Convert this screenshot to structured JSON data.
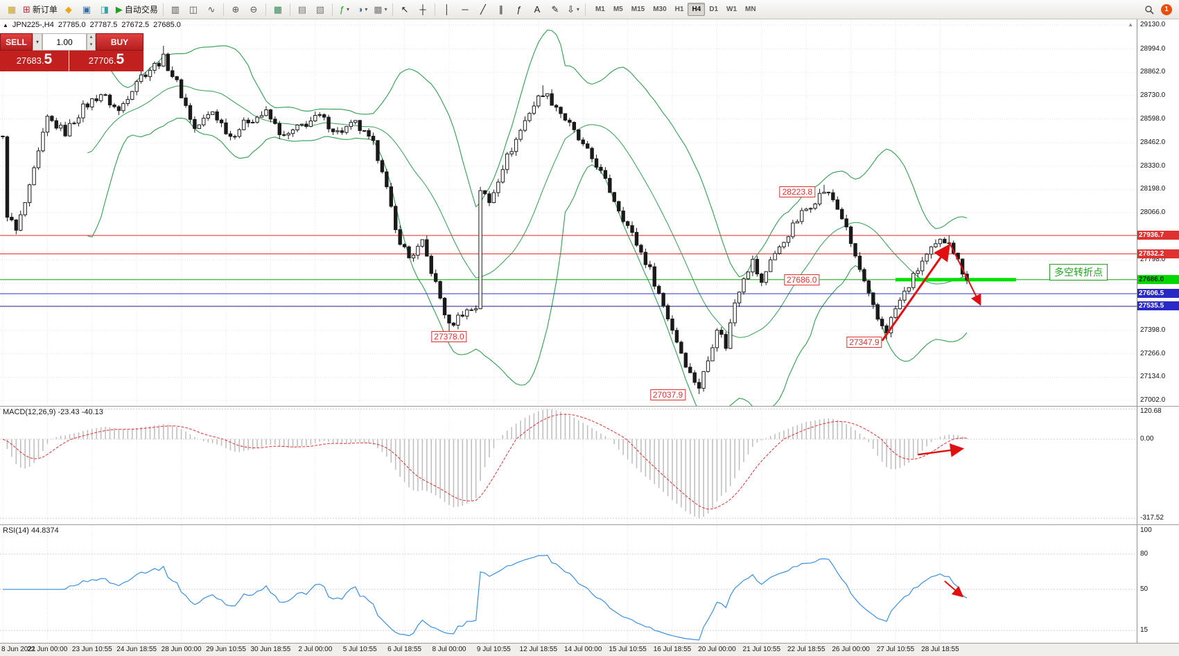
{
  "toolbar": {
    "items": [
      {
        "name": "chart-window-icon",
        "glyph": "▦",
        "color": "#c8a028"
      },
      {
        "name": "new-order-button",
        "glyph": "⊞",
        "color": "#b03030",
        "label": "新订单"
      },
      {
        "name": "alerts-icon",
        "glyph": "◆",
        "color": "#e8a81c"
      },
      {
        "name": "market-watch-icon",
        "glyph": "▣",
        "color": "#3a6ea5"
      },
      {
        "name": "strategy-tester-icon",
        "glyph": "◨",
        "color": "#3aa0a5"
      },
      {
        "name": "autotrading-button",
        "glyph": "▶",
        "color": "#1fa11f",
        "label": "自动交易"
      },
      {
        "sep": true
      },
      {
        "name": "chart-bars-button",
        "glyph": "▥",
        "color": "#555555"
      },
      {
        "name": "chart-candles-button",
        "glyph": "◫",
        "color": "#555555"
      },
      {
        "name": "chart-line-button",
        "glyph": "∿",
        "color": "#555555"
      },
      {
        "sep": true
      },
      {
        "name": "zoom-in-button",
        "glyph": "⊕",
        "color": "#555555"
      },
      {
        "name": "zoom-out-button",
        "glyph": "⊖",
        "color": "#555555"
      },
      {
        "sep": true
      },
      {
        "name": "tile-windows-button",
        "glyph": "▦",
        "color": "#2e8b57"
      },
      {
        "sep": true
      },
      {
        "name": "auto-arrange-button",
        "glyph": "▤",
        "color": "#777777"
      },
      {
        "name": "cascade-windows-button",
        "glyph": "▧",
        "color": "#777777"
      },
      {
        "sep": true
      },
      {
        "name": "indicators-button",
        "glyph": "ƒ",
        "color": "#1fa11f",
        "caret": true
      },
      {
        "name": "periods-button",
        "glyph": "◑",
        "color": "#3a6ea5",
        "caret": true
      },
      {
        "name": "templates-button",
        "glyph": "▩",
        "color": "#777777",
        "caret": true
      },
      {
        "sep": true
      },
      {
        "name": "cursor-button",
        "glyph": "↖",
        "color": "#222222"
      },
      {
        "name": "crosshair-button",
        "glyph": "┼",
        "color": "#222222"
      },
      {
        "sep": true
      },
      {
        "name": "vertical-line-button",
        "glyph": "│",
        "color": "#222222"
      },
      {
        "name": "horizontal-line-button",
        "glyph": "─",
        "color": "#222222"
      },
      {
        "name": "trendline-button",
        "glyph": "╱",
        "color": "#222222"
      },
      {
        "name": "channel-button",
        "glyph": "∥",
        "color": "#222222"
      },
      {
        "name": "fibonacci-button",
        "glyph": "ƒ",
        "color": "#222222"
      },
      {
        "name": "text-button",
        "glyph": "A",
        "color": "#222222"
      },
      {
        "name": "label-button",
        "glyph": "✎",
        "color": "#222222"
      },
      {
        "name": "arrows-tools-button",
        "glyph": "⇩",
        "color": "#222222",
        "caret": true
      },
      {
        "sep": true
      }
    ],
    "timeframes": [
      "M1",
      "M5",
      "M15",
      "M30",
      "H1",
      "H4",
      "D1",
      "W1",
      "MN"
    ],
    "active_timeframe": "H4",
    "notification_count": "1"
  },
  "chart": {
    "info": {
      "direction": "▲",
      "symbol_tf": "JPN225-,H4",
      "open": "27785.0",
      "high": "27787.5",
      "low": "27672.5",
      "close": "27685.0"
    },
    "one_click": {
      "sell_label": "SELL",
      "buy_label": "BUY",
      "volume": "1.00",
      "sell_price_main": "27683.",
      "sell_price_big": "5",
      "buy_price_main": "27706.",
      "buy_price_big": "5"
    },
    "scale_labels": [
      {
        "text": "29130.0",
        "value": 29130.0
      },
      {
        "text": "28994.0",
        "value": 28994.0
      },
      {
        "text": "28862.0",
        "value": 28862.0
      },
      {
        "text": "28730.0",
        "value": 28730.0
      },
      {
        "text": "28598.0",
        "value": 28598.0
      },
      {
        "text": "28462.0",
        "value": 28462.0
      },
      {
        "text": "28330.0",
        "value": 28330.0
      },
      {
        "text": "28198.0",
        "value": 28198.0
      },
      {
        "text": "28066.0",
        "value": 28066.0
      },
      {
        "text": "27798.0",
        "value": 27798.0
      },
      {
        "text": "27398.0",
        "value": 27398.0
      },
      {
        "text": "27266.0",
        "value": 27266.0
      },
      {
        "text": "27134.0",
        "value": 27134.0
      },
      {
        "text": "27002.0",
        "value": 27002.0
      }
    ],
    "grid_prices": [
      29130,
      28994,
      28862,
      28730,
      28598,
      28462,
      28330,
      28198,
      28066,
      27934,
      27798,
      27666,
      27530,
      27398,
      27266,
      27134,
      27002
    ],
    "price_badges": [
      {
        "text": "27936.7",
        "value": 27936.7,
        "bg": "#e03131",
        "fg": "#ffffff"
      },
      {
        "text": "27832.2",
        "value": 27832.2,
        "bg": "#e03131",
        "fg": "#ffffff"
      },
      {
        "text": "27686.0",
        "value": 27686.0,
        "bg": "#00d800",
        "fg": "#002a00"
      },
      {
        "text": "27606.5",
        "value": 27606.5,
        "bg": "#2929c8",
        "fg": "#ffffff"
      },
      {
        "text": "27535.5",
        "value": 27535.5,
        "bg": "#2929c8",
        "fg": "#ffffff"
      }
    ],
    "hlines": [
      {
        "price": 27936.7,
        "color": "#e03131",
        "width": 1
      },
      {
        "price": 27832.2,
        "color": "#e03131",
        "width": 1
      },
      {
        "price": 27686.0,
        "color": "#00aa00",
        "width": 1
      },
      {
        "price": 27606.5,
        "color": "#3030d0",
        "width": 1
      },
      {
        "price": 27535.5,
        "color": "#202090",
        "width": 1
      }
    ],
    "green_segment": {
      "price": 27686.0,
      "from_bar": 200,
      "to_bar": 227,
      "color": "#00e000",
      "width": 5
    },
    "annotations": [
      {
        "text": "28223.8",
        "bar": 178,
        "price": 28184,
        "style": "red"
      },
      {
        "text": "27686.0",
        "bar": 179,
        "price": 27686,
        "style": "red"
      },
      {
        "text": "27378.0",
        "bar": 100,
        "price": 27363,
        "style": "red"
      },
      {
        "text": "27347.9",
        "bar": 193,
        "price": 27332,
        "style": "red"
      },
      {
        "text": "27037.9",
        "bar": 149,
        "price": 27034,
        "style": "red"
      },
      {
        "text": "多空转折点",
        "bar": 241,
        "price": 27730,
        "style": "green"
      }
    ],
    "arrows": [
      {
        "name": "bull-trend-arrow",
        "panel": "main",
        "from_bar": 197,
        "from_val": 27340,
        "to_bar": 212,
        "to_val": 27880,
        "width": 3
      },
      {
        "name": "bear-trend-arrow",
        "panel": "main",
        "from_bar": 212,
        "from_val": 27900,
        "to_bar": 219,
        "to_val": 27545,
        "width": 2
      },
      {
        "name": "macd-trend-arrow",
        "panel": "macd",
        "from_bar": 205,
        "from_val": -62,
        "to_bar": 215,
        "to_val": -38,
        "width": 2.5
      },
      {
        "name": "rsi-trend-arrow",
        "panel": "rsi",
        "from_bar": 211,
        "from_val": 57,
        "to_bar": 215,
        "to_val": 44,
        "width": 2
      }
    ],
    "arrow_color": "#e01010"
  },
  "macd": {
    "header": "MACD(12,26,9) -23.43 -40.13",
    "scale_labels": [
      "120.68",
      "0.00",
      "-317.52"
    ],
    "scale_values": [
      120.68,
      0,
      -317.52
    ]
  },
  "rsi": {
    "header": "RSI(14) 44.8374",
    "scale_labels": [
      "100",
      "80",
      "50",
      "15"
    ],
    "scale_values": [
      100,
      80,
      50,
      15
    ],
    "grid_values": [
      80,
      50,
      15
    ]
  },
  "time_axis": {
    "labels": [
      "8 Jun 2021",
      "22 Jun 00:00",
      "23 Jun 10:55",
      "24 Jun 18:55",
      "28 Jun 00:00",
      "29 Jun 10:55",
      "30 Jun 18:55",
      "2 Jul 00:00",
      "5 Jul 10:55",
      "6 Jul 18:55",
      "8 Jul 00:00",
      "9 Jul 10:55",
      "12 Jul 18:55",
      "14 Jul 00:00",
      "15 Jul 10:55",
      "16 Jul 18:55",
      "20 Jul 00:00",
      "21 Jul 10:55",
      "22 Jul 18:55",
      "26 Jul 00:00",
      "27 Jul 10:55",
      "28 Jul 18:55"
    ]
  },
  "chart_data": {
    "type": "candlestick",
    "symbol": "JPN225-",
    "timeframe": "H4",
    "bars": 217,
    "ylim": [
      27002,
      29130
    ],
    "ohlc_display": {
      "open": 27785.0,
      "high": 27787.5,
      "low": 27672.5,
      "close": 27685.0
    },
    "bid": 27683.5,
    "ask": 27706.5,
    "last_close": 27685.0,
    "price_path": [
      [
        0,
        28480
      ],
      [
        1,
        28060
      ],
      [
        3,
        27960
      ],
      [
        6,
        28200
      ],
      [
        10,
        28600
      ],
      [
        14,
        28520
      ],
      [
        18,
        28660
      ],
      [
        22,
        28740
      ],
      [
        26,
        28640
      ],
      [
        30,
        28820
      ],
      [
        34,
        28900
      ],
      [
        36,
        28940
      ],
      [
        39,
        28800
      ],
      [
        43,
        28540
      ],
      [
        47,
        28640
      ],
      [
        51,
        28500
      ],
      [
        55,
        28590
      ],
      [
        59,
        28630
      ],
      [
        63,
        28490
      ],
      [
        67,
        28560
      ],
      [
        71,
        28610
      ],
      [
        75,
        28520
      ],
      [
        79,
        28570
      ],
      [
        83,
        28450
      ],
      [
        85,
        28320
      ],
      [
        88,
        27960
      ],
      [
        91,
        27810
      ],
      [
        94,
        27890
      ],
      [
        97,
        27660
      ],
      [
        100,
        27420
      ],
      [
        103,
        27500
      ],
      [
        106,
        27530
      ],
      [
        107,
        28200
      ],
      [
        109,
        28120
      ],
      [
        112,
        28330
      ],
      [
        115,
        28480
      ],
      [
        118,
        28640
      ],
      [
        121,
        28750
      ],
      [
        124,
        28670
      ],
      [
        127,
        28560
      ],
      [
        130,
        28440
      ],
      [
        133,
        28340
      ],
      [
        136,
        28190
      ],
      [
        139,
        28040
      ],
      [
        142,
        27890
      ],
      [
        145,
        27740
      ],
      [
        148,
        27540
      ],
      [
        151,
        27340
      ],
      [
        154,
        27150
      ],
      [
        156,
        27080
      ],
      [
        158,
        27230
      ],
      [
        160,
        27420
      ],
      [
        162,
        27310
      ],
      [
        164,
        27560
      ],
      [
        166,
        27710
      ],
      [
        168,
        27790
      ],
      [
        170,
        27660
      ],
      [
        172,
        27810
      ],
      [
        174,
        27860
      ],
      [
        176,
        27950
      ],
      [
        179,
        28060
      ],
      [
        182,
        28140
      ],
      [
        184,
        28190
      ],
      [
        186,
        28140
      ],
      [
        188,
        28040
      ],
      [
        190,
        27890
      ],
      [
        192,
        27740
      ],
      [
        194,
        27590
      ],
      [
        196,
        27460
      ],
      [
        198,
        27400
      ],
      [
        200,
        27520
      ],
      [
        202,
        27610
      ],
      [
        204,
        27700
      ],
      [
        206,
        27790
      ],
      [
        208,
        27850
      ],
      [
        210,
        27900
      ],
      [
        212,
        27915
      ],
      [
        214,
        27790
      ],
      [
        216,
        27685
      ]
    ],
    "pins": [
      {
        "bar": 36,
        "type": "high",
        "value": 29012
      },
      {
        "bar": 100,
        "type": "low",
        "value": 27378.0
      },
      {
        "bar": 121,
        "type": "high",
        "value": 28788
      },
      {
        "bar": 156,
        "type": "low",
        "value": 27037.9
      },
      {
        "bar": 184,
        "type": "high",
        "value": 28223.8
      },
      {
        "bar": 198,
        "type": "low",
        "value": 27347.9
      },
      {
        "bar": 212,
        "type": "high",
        "value": 27936.7
      }
    ],
    "indicators": {
      "bollinger_period": 20,
      "bollinger_deviation": 2,
      "macd_params": [
        12,
        26,
        9
      ],
      "macd_values": [
        -23.43,
        -40.13
      ],
      "rsi_period": 14,
      "rsi_value": 44.8374
    },
    "levels": {
      "resistance": [
        27936.7,
        27832.2
      ],
      "pivot": 27686.0,
      "support": [
        27606.5,
        27535.5
      ],
      "swing_labels": [
        28223.8,
        27686.0,
        27378.0,
        27347.9,
        27037.9
      ]
    }
  }
}
